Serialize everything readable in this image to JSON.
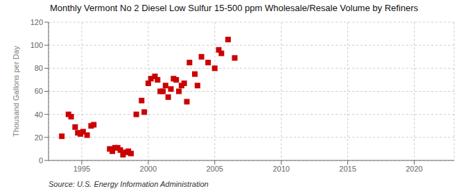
{
  "chart_data": {
    "type": "scatter",
    "title": "Monthly Vermont No 2 Diesel Low Sulfur 15-500 ppm Wholesale/Resale Volume by Refiners",
    "ylabel": "Thousand Gallons per Day",
    "annotations": [
      "Source: U.S. Energy Information Administration"
    ],
    "color": "#cc0000",
    "marker": "square",
    "grid": true,
    "xlim": [
      1992.5,
      2023
    ],
    "ylim": [
      0,
      120
    ],
    "xticks": [
      1995,
      2000,
      2005,
      2010,
      2015,
      2020
    ],
    "yticks": [
      0,
      20,
      40,
      60,
      80,
      100,
      120
    ],
    "x": [
      1993.5,
      1994.0,
      1994.2,
      1994.5,
      1994.7,
      1994.9,
      1995.1,
      1995.4,
      1995.7,
      1995.9,
      1997.1,
      1997.3,
      1997.5,
      1997.7,
      1997.9,
      1998.1,
      1998.3,
      1998.5,
      1998.7,
      1999.1,
      1999.5,
      1999.7,
      2000.0,
      2000.2,
      2000.5,
      2000.7,
      2000.9,
      2001.1,
      2001.3,
      2001.5,
      2001.7,
      2001.9,
      2002.1,
      2002.3,
      2002.5,
      2002.7,
      2002.9,
      2003.1,
      2003.5,
      2003.7,
      2004.0,
      2004.5,
      2005.0,
      2005.3,
      2005.5,
      2006.0,
      2006.5
    ],
    "values": [
      21,
      40,
      38,
      29,
      24,
      23,
      25,
      22,
      30,
      31,
      10,
      8,
      11,
      11,
      9,
      5,
      7,
      8,
      6,
      40,
      52,
      42,
      67,
      71,
      73,
      70,
      60,
      60,
      65,
      55,
      62,
      71,
      70,
      60,
      65,
      67,
      51,
      85,
      75,
      65,
      90,
      85,
      80,
      96,
      93,
      105,
      89
    ]
  }
}
